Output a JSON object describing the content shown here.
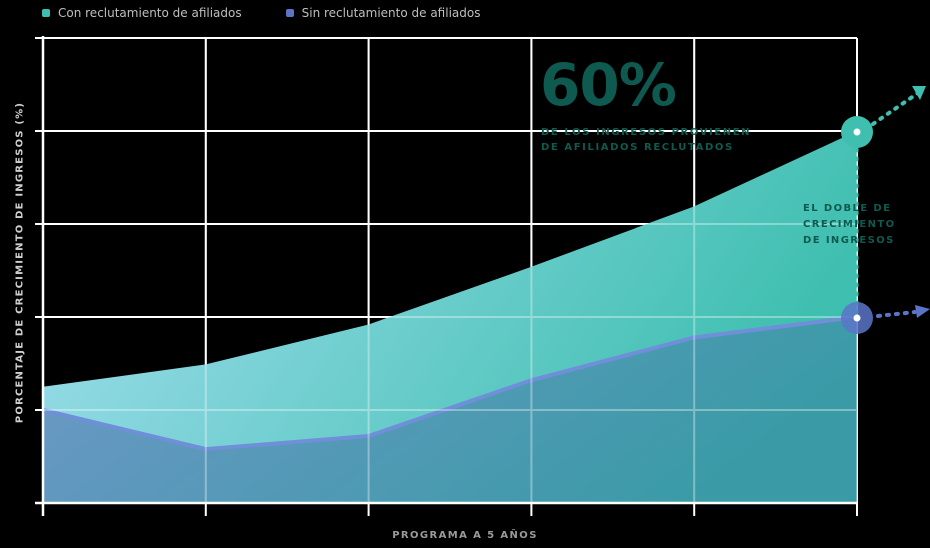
{
  "legend": {
    "items": [
      {
        "label": "Con reclutamiento de afiliados",
        "color": "#3fbfb0"
      },
      {
        "label": "Sin reclutamiento de afiliados",
        "color": "#5b74c8"
      }
    ]
  },
  "axes": {
    "ylabel": "PORCENTAJE DE CRECIMIENTO DE INGRESOS (%)",
    "xlabel": "PROGRAMA A 5 AÑOS"
  },
  "annotations": {
    "big_value": "60%",
    "big_caption_line1": "DE LOS INGRESOS PROVIENEN",
    "big_caption_line2": "DE AFILIADOS RECLUTADOS",
    "double_line1": "EL DOBLE DE",
    "double_line2": "CRECIMIENTO",
    "double_line3": "DE INGRESOS"
  },
  "colors": {
    "con_start": "#a4dff0",
    "con_end": "#3fbfb0",
    "sin_start": "#6f97c8",
    "sin_end": "#3a9ba6",
    "sin_line": "#5b74c8",
    "grid": "#ffffff",
    "annotation_text": "#0f5a50"
  },
  "chart_data": {
    "type": "area",
    "title": "",
    "xlabel": "PROGRAMA A 5 AÑOS",
    "ylabel": "PORCENTAJE DE CRECIMIENTO DE INGRESOS (%)",
    "x": [
      0,
      1,
      2,
      3,
      4,
      5
    ],
    "categories": [
      "0",
      "1",
      "2",
      "3",
      "4",
      "5"
    ],
    "series": [
      {
        "name": "Con reclutamiento de afiliados",
        "values": [
          1.25,
          1.49,
          1.92,
          2.54,
          3.19,
          4.0
        ]
      },
      {
        "name": "Sin reclutamiento de afiliados",
        "values": [
          1.0,
          0.58,
          0.72,
          1.32,
          1.78,
          2.0
        ]
      }
    ],
    "ylim": [
      0,
      5
    ],
    "grid": true,
    "tick_labels_shown": false,
    "legend_position": "top-left",
    "annotations": [
      {
        "text": "60% DE LOS INGRESOS PROVIENEN DE AFILIADOS RECLUTADOS",
        "x": 3.1,
        "y": 4.5
      },
      {
        "text": "EL DOBLE DE CRECIMIENTO DE INGRESOS",
        "x": 5,
        "y": 3.0
      }
    ]
  }
}
